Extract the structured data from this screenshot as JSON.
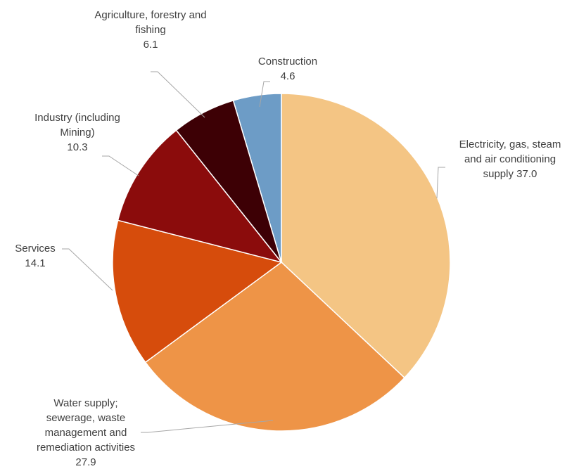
{
  "chart_data": {
    "type": "pie",
    "title": "",
    "slices": [
      {
        "label_lines": [
          "Electricity, gas, steam",
          "and air conditioning",
          "supply 37.0"
        ],
        "label": "Electricity, gas, steam and air conditioning supply",
        "value": 37.0,
        "color": "#f4c584"
      },
      {
        "label_lines": [
          "Water supply;",
          "sewerage, waste",
          "management and",
          "remediation activities",
          "27.9"
        ],
        "label": "Water supply; sewerage, waste management and remediation activities",
        "value": 27.9,
        "color": "#ee9447"
      },
      {
        "label_lines": [
          "Services",
          "14.1"
        ],
        "label": "Services",
        "value": 14.1,
        "color": "#d64c0c"
      },
      {
        "label_lines": [
          "Industry (including",
          "Mining)",
          "10.3"
        ],
        "label": "Industry (including Mining)",
        "value": 10.3,
        "color": "#8b0c0c"
      },
      {
        "label_lines": [
          "Agriculture, forestry and",
          "fishing",
          "6.1"
        ],
        "label": "Agriculture, forestry and fishing",
        "value": 6.1,
        "color": "#3d0005"
      },
      {
        "label_lines": [
          "Construction",
          "4.6"
        ],
        "label": "Construction",
        "value": 4.6,
        "color": "#6d9cc6"
      }
    ]
  }
}
